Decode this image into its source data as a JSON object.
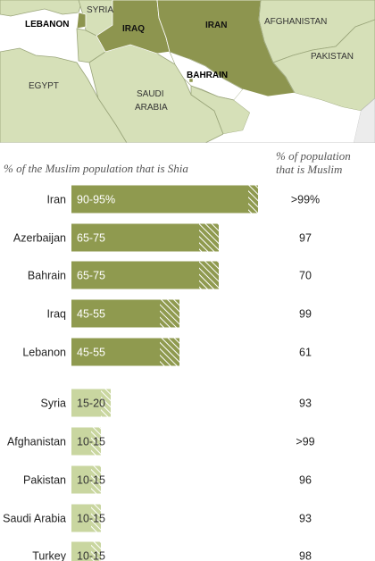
{
  "map": {
    "labels": {
      "syria": "SYRIA",
      "lebanon": "LEBANON",
      "iraq": "IRAQ",
      "iran": "IRAN",
      "afghanistan": "AFGHANISTAN",
      "pakistan": "PAKISTAN",
      "egypt": "EGYPT",
      "saudi_arabia_1": "SAUDI",
      "saudi_arabia_2": "ARABIA",
      "bahrain": "BAHRAIN"
    }
  },
  "headers": {
    "shia_share": "% of the Muslim population that is Shia",
    "muslim_share_1": "% of population",
    "muslim_share_2": "that is Muslim"
  },
  "colors": {
    "high": "#8f9a4f",
    "low": "#c9d6a0",
    "map_high": "#8d954f",
    "map_low": "#d6e0b8",
    "map_sea": "#ffffff",
    "map_other": "#ececec"
  },
  "chart_data": {
    "type": "bar",
    "categories": [
      "Iran",
      "Azerbaijan",
      "Bahrain",
      "Iraq",
      "Lebanon",
      "Syria",
      "Afghanistan",
      "Pakistan",
      "Saudi Arabia",
      "Turkey"
    ],
    "series": [
      {
        "values_min": [
          90,
          65,
          65,
          45,
          45,
          15,
          10,
          10,
          10,
          10
        ],
        "values_max": [
          95,
          75,
          75,
          55,
          55,
          20,
          15,
          15,
          15,
          15
        ],
        "data_labels": [
          "90-95%",
          "65-75",
          "65-75",
          "45-55",
          "45-55",
          "15-20",
          "10-15",
          "10-15",
          "10-15",
          "10-15"
        ]
      }
    ],
    "muslim_share": [
      ">99%",
      "97",
      "70",
      "99",
      "61",
      "93",
      ">99",
      "96",
      "93",
      "98"
    ],
    "xlim": [
      0,
      100
    ]
  }
}
